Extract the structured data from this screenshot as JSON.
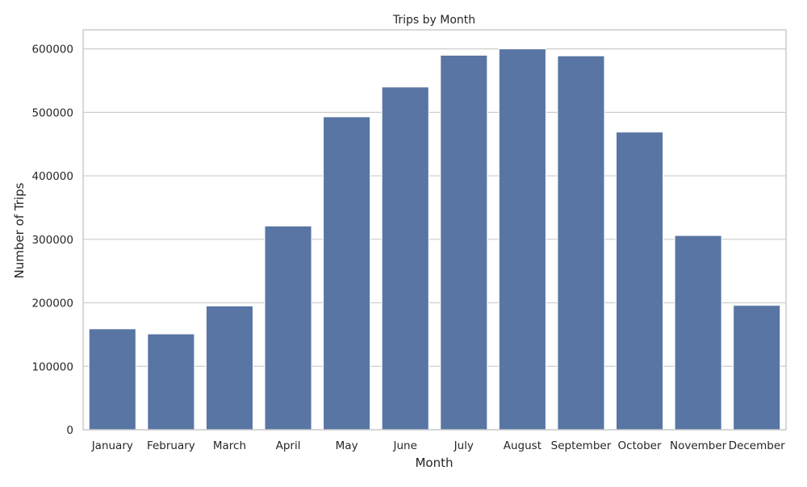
{
  "chart_data": {
    "type": "bar",
    "title": "Trips by Month",
    "xlabel": "Month",
    "ylabel": "Number of Trips",
    "categories": [
      "January",
      "February",
      "March",
      "April",
      "May",
      "June",
      "July",
      "August",
      "September",
      "October",
      "November",
      "December"
    ],
    "values": [
      159000,
      151000,
      195000,
      321000,
      493000,
      540000,
      590000,
      600000,
      589000,
      469000,
      306000,
      196000
    ],
    "ylim": [
      0,
      630000
    ],
    "yticks": [
      0,
      100000,
      200000,
      300000,
      400000,
      500000,
      600000
    ],
    "ytick_labels": [
      "0",
      "100000",
      "200000",
      "300000",
      "400000",
      "500000",
      "600000"
    ],
    "grid": true,
    "bar_color": "#5875a4",
    "grid_color": "#cccccc",
    "frame_color": "#cccccc"
  }
}
